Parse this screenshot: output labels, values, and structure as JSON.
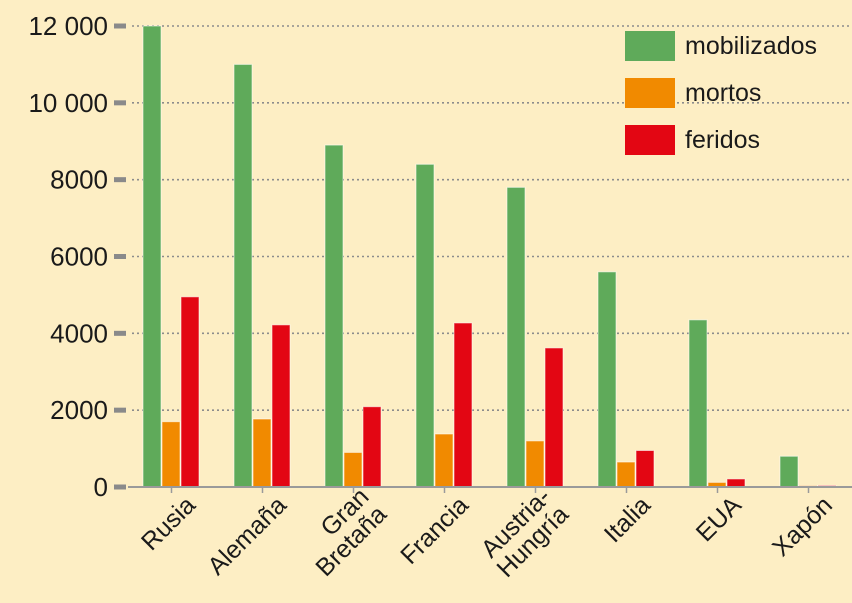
{
  "chart_data": {
    "type": "bar",
    "title": "",
    "xlabel": "",
    "ylabel": "",
    "ylim": [
      0,
      12000
    ],
    "yticks": [
      0,
      2000,
      4000,
      6000,
      8000,
      10000,
      12000
    ],
    "ytick_labels": [
      "0",
      "2000",
      "4000",
      "6000",
      "8000",
      "10 000",
      "12 000"
    ],
    "grid": "horizontal-dotted",
    "legend_position": "top-right",
    "categories": [
      [
        "Rusia"
      ],
      [
        "Alemaña"
      ],
      [
        "Gran",
        "Bretaña"
      ],
      [
        "Francia"
      ],
      [
        "Austria-",
        "Hungría"
      ],
      [
        "Italia"
      ],
      [
        "EUA"
      ],
      [
        "Xapón"
      ]
    ],
    "series": [
      {
        "name": "mobilizados",
        "color": "#5faa5a",
        "values": [
          12000,
          11000,
          8900,
          8400,
          7800,
          5600,
          4350,
          800
        ]
      },
      {
        "name": "mortos",
        "color": "#f18a00",
        "values": [
          1700,
          1770,
          900,
          1380,
          1200,
          650,
          120,
          10
        ]
      },
      {
        "name": "feridos",
        "color": "#e30613",
        "values": [
          4950,
          4220,
          2090,
          4270,
          3620,
          950,
          210,
          20
        ]
      }
    ]
  }
}
